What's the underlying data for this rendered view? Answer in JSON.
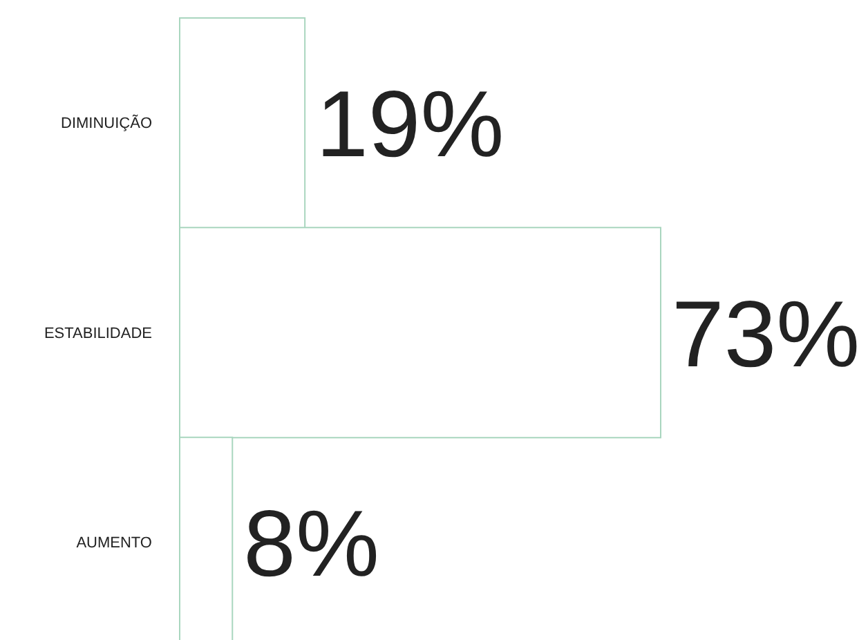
{
  "chart_data": {
    "type": "bar",
    "orientation": "horizontal",
    "categories": [
      "DIMINUIÇÃO",
      "ESTABILIDADE",
      "AUMENTO"
    ],
    "values": [
      19,
      73,
      8
    ],
    "value_labels": [
      "19%",
      "73%",
      "8%"
    ],
    "color": "#a9d6bf"
  }
}
